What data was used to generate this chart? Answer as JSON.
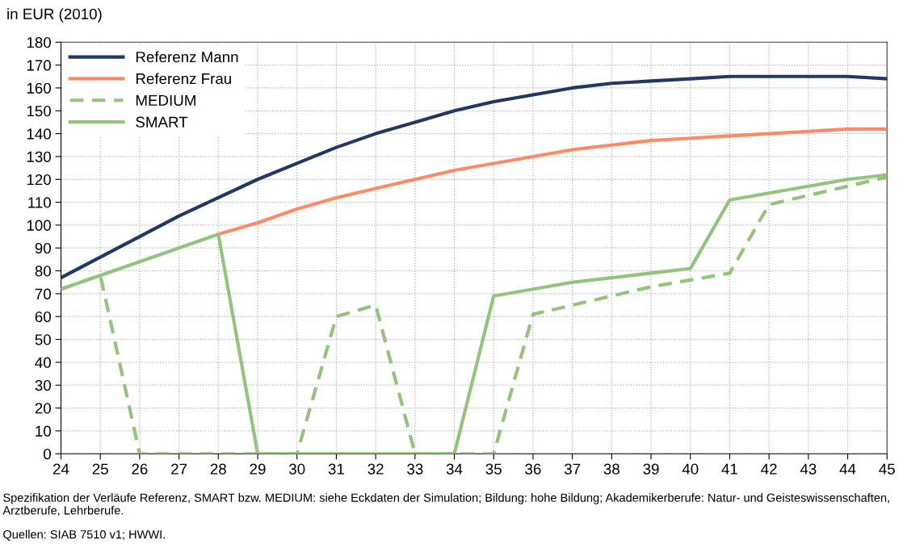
{
  "chart_data": {
    "type": "line",
    "ylabel": "in EUR (2010)",
    "x": [
      24,
      25,
      26,
      27,
      28,
      29,
      30,
      31,
      32,
      33,
      34,
      35,
      36,
      37,
      38,
      39,
      40,
      41,
      42,
      43,
      44,
      45
    ],
    "series": [
      {
        "name": "Referenz Mann",
        "color": "#203864",
        "values": [
          77,
          86,
          95,
          104,
          112,
          120,
          127,
          134,
          140,
          145,
          150,
          154,
          157,
          160,
          162,
          163,
          164,
          165,
          165,
          165,
          165,
          164
        ]
      },
      {
        "name": "Referenz Frau",
        "color": "#ff8a65",
        "values": [
          null,
          null,
          null,
          null,
          96,
          101,
          107,
          112,
          116,
          120,
          124,
          127,
          130,
          133,
          135,
          137,
          138,
          139,
          140,
          141,
          142,
          142
        ]
      },
      {
        "name": "MEDIUM",
        "color": "#93c47d",
        "line_style": "dashed",
        "values": [
          72,
          78,
          0,
          0,
          0,
          0,
          0,
          60,
          65,
          0,
          0,
          0,
          61,
          65,
          69,
          73,
          76,
          79,
          109,
          113,
          117,
          121
        ]
      },
      {
        "name": "SMART",
        "color": "#93c47d",
        "line_style": "solid",
        "values": [
          72,
          78,
          84,
          90,
          96,
          0,
          0,
          0,
          0,
          0,
          0,
          69,
          72,
          75,
          77,
          79,
          81,
          111,
          114,
          117,
          120,
          122
        ]
      }
    ],
    "xlim": [
      24,
      45
    ],
    "xticks": [
      24,
      25,
      26,
      27,
      28,
      29,
      30,
      31,
      32,
      33,
      34,
      35,
      36,
      37,
      38,
      39,
      40,
      41,
      42,
      43,
      44,
      45
    ],
    "ylim": [
      0,
      180
    ],
    "yticks": [
      0,
      10,
      20,
      30,
      40,
      50,
      60,
      70,
      80,
      90,
      100,
      110,
      120,
      130,
      140,
      150,
      160,
      170,
      180
    ],
    "grid": true,
    "legend": "top left",
    "marker": "none",
    "annotations": [
      "Spezifikation der Verläufe Referenz, SMART bzw. MEDIUM: siehe Eckdaten der Simulation; Bildung: hohe Bildung; Akademikerberufe: Natur- und Geisteswissenschaften, Arztberufe, Lehrberufe.",
      "Quellen: SIAB 7510 v1; HWWI."
    ]
  }
}
